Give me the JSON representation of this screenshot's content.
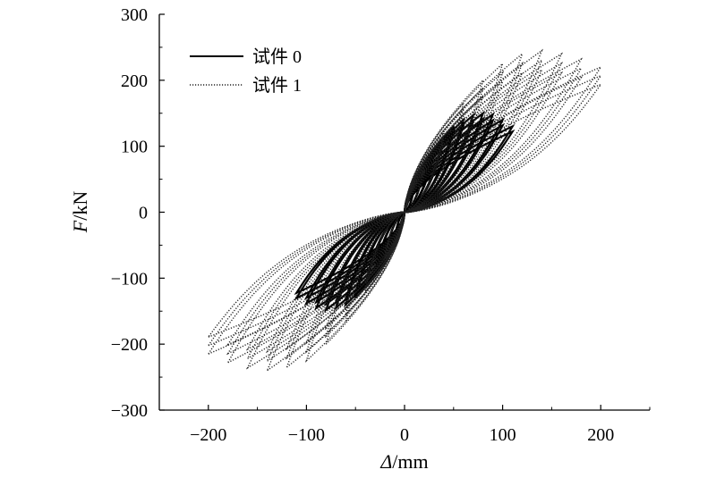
{
  "chart_data": {
    "type": "line",
    "xlabel_symbol": "Δ",
    "xlabel_unit": "/mm",
    "ylabel_symbol": "F",
    "ylabel_unit": "/kN",
    "xlim": [
      -250,
      250
    ],
    "ylim": [
      -300,
      300
    ],
    "grid": false,
    "legend_position": "top-left",
    "x_ticks": [
      -200,
      -100,
      0,
      100,
      200
    ],
    "x_tick_labels": [
      "−200",
      "−100",
      "0",
      "100",
      "200"
    ],
    "y_ticks": [
      -300,
      -200,
      -100,
      0,
      100,
      200,
      300
    ],
    "y_tick_labels": [
      "−300",
      "−200",
      "−100",
      "0",
      "100",
      "200",
      "300"
    ],
    "series": [
      {
        "name": "试件 0",
        "style": "solid",
        "color": "#000000",
        "peak_displacements": [
          10,
          20,
          30,
          40,
          50,
          60,
          70,
          80,
          90,
          100,
          110
        ],
        "peak_forces_pos": [
          40,
          70,
          95,
          115,
          130,
          140,
          147,
          150,
          148,
          140,
          130
        ],
        "peak_forces_neg": [
          -40,
          -70,
          -95,
          -115,
          -130,
          -140,
          -145,
          -148,
          -145,
          -138,
          -130
        ]
      },
      {
        "name": "试件 1",
        "style": "dotted",
        "color": "#222222",
        "peak_displacements": [
          20,
          40,
          60,
          80,
          100,
          120,
          140,
          160,
          180,
          200
        ],
        "peak_forces_pos": [
          70,
          120,
          165,
          200,
          225,
          240,
          245,
          240,
          232,
          220
        ],
        "peak_forces_neg": [
          -70,
          -120,
          -165,
          -200,
          -225,
          -235,
          -240,
          -236,
          -228,
          -215
        ]
      }
    ]
  }
}
